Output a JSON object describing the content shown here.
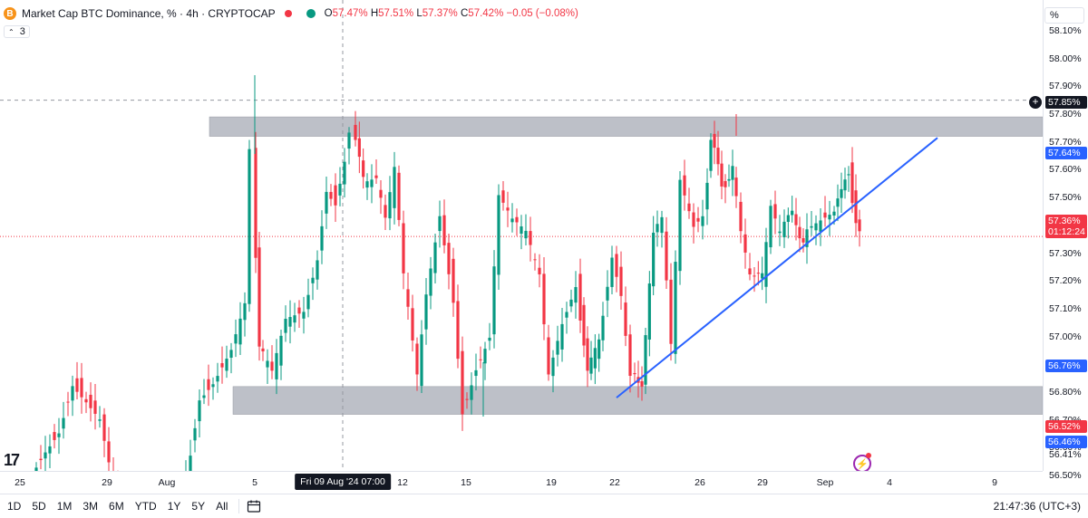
{
  "legend": {
    "symbol_icon": "B",
    "title": "Market Cap BTC Dominance, % · 4h · CRYPTOCAP",
    "open_label": "O",
    "open": "57.47%",
    "high_label": "H",
    "high": "57.51%",
    "low_label": "L",
    "low": "57.37%",
    "close_label": "C",
    "close": "57.42%",
    "change": "−0.05 (−0.08%)",
    "indicator_count": "3"
  },
  "price_axis": {
    "unit_box": "%",
    "ticks": [
      "58.10%",
      "58.00%",
      "57.90%",
      "57.80%",
      "57.70%",
      "57.60%",
      "57.50%",
      "57.40%",
      "57.30%",
      "57.20%",
      "57.10%",
      "57.00%",
      "56.90%",
      "56.80%",
      "56.70%",
      "56.60%",
      "56.50%",
      "56.41%"
    ],
    "tags": {
      "crosshair": "57.85%",
      "trendline": "57.64%",
      "last_price": "57.36%",
      "countdown": "01:12:24",
      "zone_low": "56.76%",
      "red_level": "56.52%",
      "blue_level": "56.46%"
    }
  },
  "time_axis": {
    "labels": [
      "25",
      "29",
      "Aug",
      "5",
      "12",
      "15",
      "19",
      "22",
      "26",
      "29",
      "Sep",
      "4",
      "9"
    ],
    "crosshair_label": "Fri 09 Aug '24   07:00"
  },
  "bottom_bar": {
    "timeframes": [
      "1D",
      "5D",
      "1M",
      "3M",
      "6M",
      "YTD",
      "1Y",
      "5Y",
      "All"
    ],
    "clock": "21:47:36 (UTC+3)"
  },
  "colors": {
    "up": "#089981",
    "down": "#f23645",
    "zone": "#b2b5be",
    "trendline": "#2962ff",
    "accent": "#2962ff"
  },
  "icons": [
    "bitcoin-icon",
    "calendar-range-icon",
    "tradingview-logo-icon",
    "lightning-icon",
    "plus-circle-icon"
  ],
  "chart_data": {
    "type": "candlestick",
    "symbol": "Market Cap BTC Dominance, %",
    "interval": "4h",
    "ylim": [
      56.38,
      58.15
    ],
    "zones": [
      {
        "name": "resistance",
        "low": 57.72,
        "high": 57.79
      },
      {
        "name": "support",
        "low": 56.72,
        "high": 56.82
      }
    ],
    "trendline": {
      "from": [
        "Aug 21",
        56.78
      ],
      "to": [
        "Sep 3",
        57.63
      ]
    },
    "candles": []
  }
}
